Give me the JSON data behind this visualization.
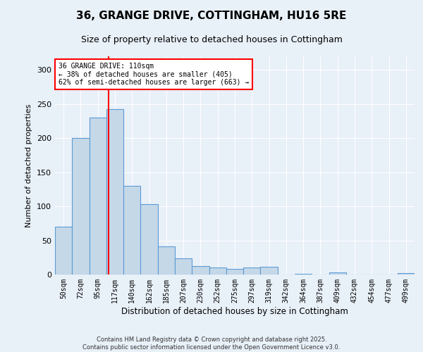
{
  "title_line1": "36, GRANGE DRIVE, COTTINGHAM, HU16 5RE",
  "title_line2": "Size of property relative to detached houses in Cottingham",
  "xlabel": "Distribution of detached houses by size in Cottingham",
  "ylabel": "Number of detached properties",
  "footer_line1": "Contains HM Land Registry data © Crown copyright and database right 2025.",
  "footer_line2": "Contains public sector information licensed under the Open Government Licence v3.0.",
  "bar_labels": [
    "50sqm",
    "72sqm",
    "95sqm",
    "117sqm",
    "140sqm",
    "162sqm",
    "185sqm",
    "207sqm",
    "230sqm",
    "252sqm",
    "275sqm",
    "297sqm",
    "319sqm",
    "342sqm",
    "364sqm",
    "387sqm",
    "409sqm",
    "432sqm",
    "454sqm",
    "477sqm",
    "499sqm"
  ],
  "bar_values": [
    70,
    200,
    230,
    243,
    130,
    103,
    41,
    24,
    12,
    10,
    8,
    10,
    11,
    0,
    1,
    0,
    3,
    0,
    0,
    0,
    2
  ],
  "bar_color": "#c5d8e8",
  "bar_edge_color": "#5b9bd5",
  "annotation_text": "36 GRANGE DRIVE: 110sqm\n← 38% of detached houses are smaller (405)\n62% of semi-detached houses are larger (663) →",
  "annotation_box_color": "white",
  "annotation_border_color": "red",
  "vline_x": 2.62,
  "vline_color": "red",
  "ylim": [
    0,
    320
  ],
  "yticks": [
    0,
    50,
    100,
    150,
    200,
    250,
    300
  ],
  "bg_color": "#e8f0f8",
  "plot_bg_color": "#e8f0f8",
  "grid_color": "white"
}
